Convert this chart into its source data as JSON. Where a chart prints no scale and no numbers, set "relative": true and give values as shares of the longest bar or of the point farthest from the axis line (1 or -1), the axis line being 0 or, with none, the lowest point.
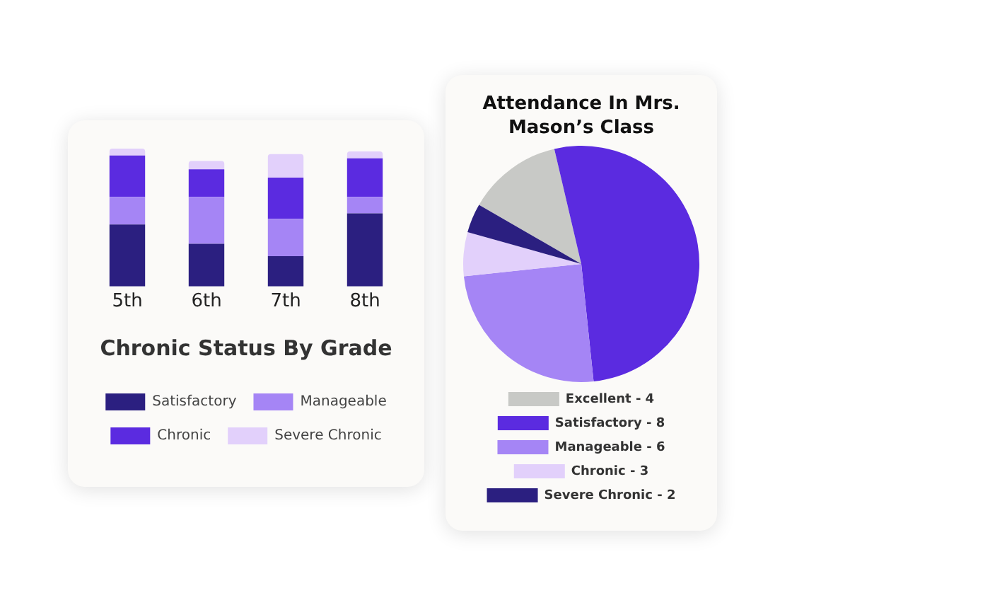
{
  "chart_data": [
    {
      "type": "bar",
      "title": "Chronic Status By Grade",
      "categories": [
        "5th",
        "6th",
        "7th",
        "8th"
      ],
      "stacked": true,
      "relative": true,
      "legend": "bottom",
      "grid": false,
      "series": [
        {
          "name": "Satisfactory",
          "color": "#2b1f80",
          "values": [
            0.45,
            0.31,
            0.22,
            0.53
          ]
        },
        {
          "name": "Manageable",
          "color": "#a585f5",
          "values": [
            0.2,
            0.34,
            0.27,
            0.12
          ]
        },
        {
          "name": "Chronic",
          "color": "#5b2be0",
          "values": [
            0.3,
            0.2,
            0.3,
            0.28
          ]
        },
        {
          "name": "Severe Chronic",
          "color": "#e2d0fb",
          "values": [
            0.05,
            0.06,
            0.17,
            0.05
          ]
        }
      ]
    },
    {
      "type": "pie",
      "title": "Attendance In Mrs. Mason’s Class",
      "legend": "bottom",
      "categories": [
        "Excellent - 4",
        "Satisfactory - 8",
        "Manageable - 6",
        "Chronic - 3",
        "Severe Chronic - 2"
      ],
      "values": [
        13,
        52,
        25,
        6,
        4
      ],
      "colors": [
        "#c8c9c6",
        "#5b2be0",
        "#a585f5",
        "#e2d0fb",
        "#2b1f80"
      ]
    }
  ]
}
